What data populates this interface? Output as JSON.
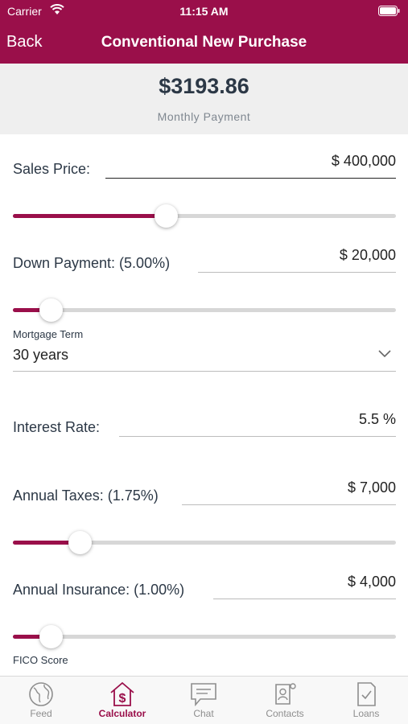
{
  "status_bar": {
    "carrier": "Carrier",
    "time": "11:15 AM"
  },
  "nav": {
    "back_label": "Back",
    "title": "Conventional New Purchase"
  },
  "summary": {
    "amount": "$3193.86",
    "label": "Monthly Payment"
  },
  "sales_price": {
    "label": "Sales Price:",
    "value": "$ 400,000",
    "slider_fraction": 0.4
  },
  "down_payment": {
    "label": "Down Payment: (5.00%)",
    "value": "$ 20,000",
    "slider_fraction": 0.1
  },
  "mortgage_term": {
    "label": "Mortgage Term",
    "value": "30 years"
  },
  "interest_rate": {
    "label": "Interest Rate:",
    "value": "5.5 %"
  },
  "annual_taxes": {
    "label": "Annual Taxes: (1.75%)",
    "value": "$ 7,000",
    "slider_fraction": 0.175
  },
  "annual_insurance": {
    "label": "Annual Insurance: (1.00%)",
    "value": "$ 4,000",
    "slider_fraction": 0.1
  },
  "fico": {
    "label": "FICO Score"
  },
  "tabs": [
    {
      "label": "Feed",
      "icon": "globe-icon"
    },
    {
      "label": "Calculator",
      "icon": "calculator-house-icon",
      "active": true
    },
    {
      "label": "Chat",
      "icon": "chat-icon"
    },
    {
      "label": "Contacts",
      "icon": "contacts-icon"
    },
    {
      "label": "Loans",
      "icon": "loans-document-icon"
    }
  ],
  "colors": {
    "brand": "#9a0f4a",
    "summary_bg": "#efefef",
    "track": "#d7d7d7",
    "tab_inactive": "#8e8e8e"
  }
}
